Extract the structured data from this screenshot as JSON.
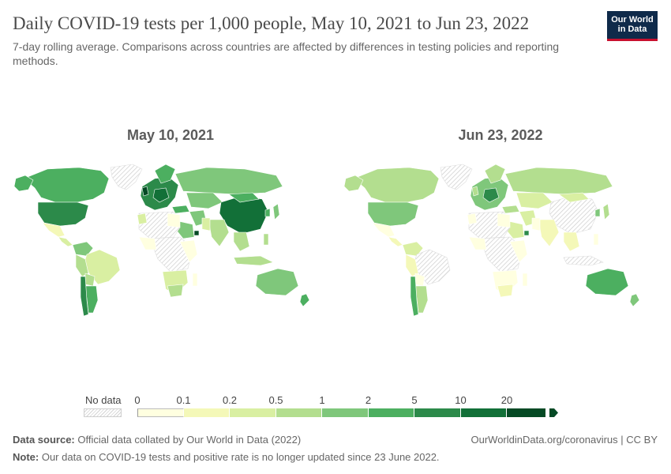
{
  "title": "Daily COVID-19 tests per 1,000 people, May 10, 2021 to Jun 23, 2022",
  "subtitle": "7-day rolling average. Comparisons across countries are affected by differences in testing policies and reporting methods.",
  "logo": {
    "line1": "Our World",
    "line2": "in Data"
  },
  "maps": [
    {
      "label": "May 10, 2021"
    },
    {
      "label": "Jun 23, 2022"
    }
  ],
  "legend": {
    "no_data_label": "No data",
    "ticks": [
      "0",
      "0.1",
      "0.2",
      "0.5",
      "1",
      "2",
      "5",
      "10",
      "20"
    ],
    "colors": [
      "#ffffe0",
      "#f4f8b8",
      "#d9efa2",
      "#b3de8f",
      "#7fc77b",
      "#4caf60",
      "#2c8a4a",
      "#127038",
      "#054a25"
    ]
  },
  "footer": {
    "source_label": "Data source:",
    "source_text": "Official data collated by Our World in Data (2022)",
    "note_label": "Note:",
    "note_text": "Our data on COVID-19 tests and positive rate is no longer updated since 23 June 2022.",
    "url": "OurWorldinData.org/coronavirus | CC BY"
  }
}
